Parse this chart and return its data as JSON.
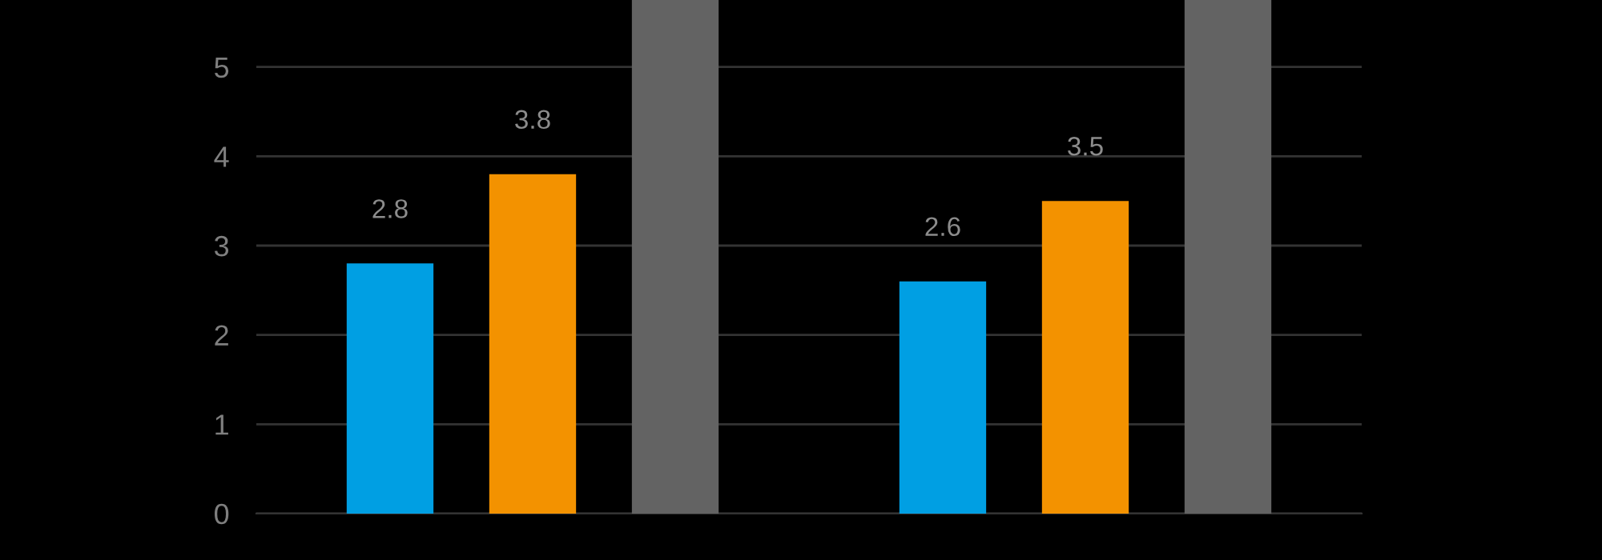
{
  "chart_data": {
    "type": "bar",
    "categories": [
      null,
      null
    ],
    "series": [
      {
        "color": "#009fe3",
        "values": [
          2.8,
          2.6
        ],
        "value_labels": [
          "2.8",
          "2.6"
        ]
      },
      {
        "color": "#f39200",
        "values": [
          3.8,
          3.5
        ],
        "value_labels": [
          "3.8",
          "3.5"
        ]
      },
      {
        "color": "#636363",
        "values": [
          5.75,
          5.75
        ],
        "value_labels": [
          null,
          null
        ]
      }
    ],
    "ylim": [
      0,
      5.75
    ],
    "yticks": [
      0,
      1,
      2,
      3,
      4,
      5
    ],
    "grid": "y",
    "tick_labels": "y",
    "legend": false
  }
}
